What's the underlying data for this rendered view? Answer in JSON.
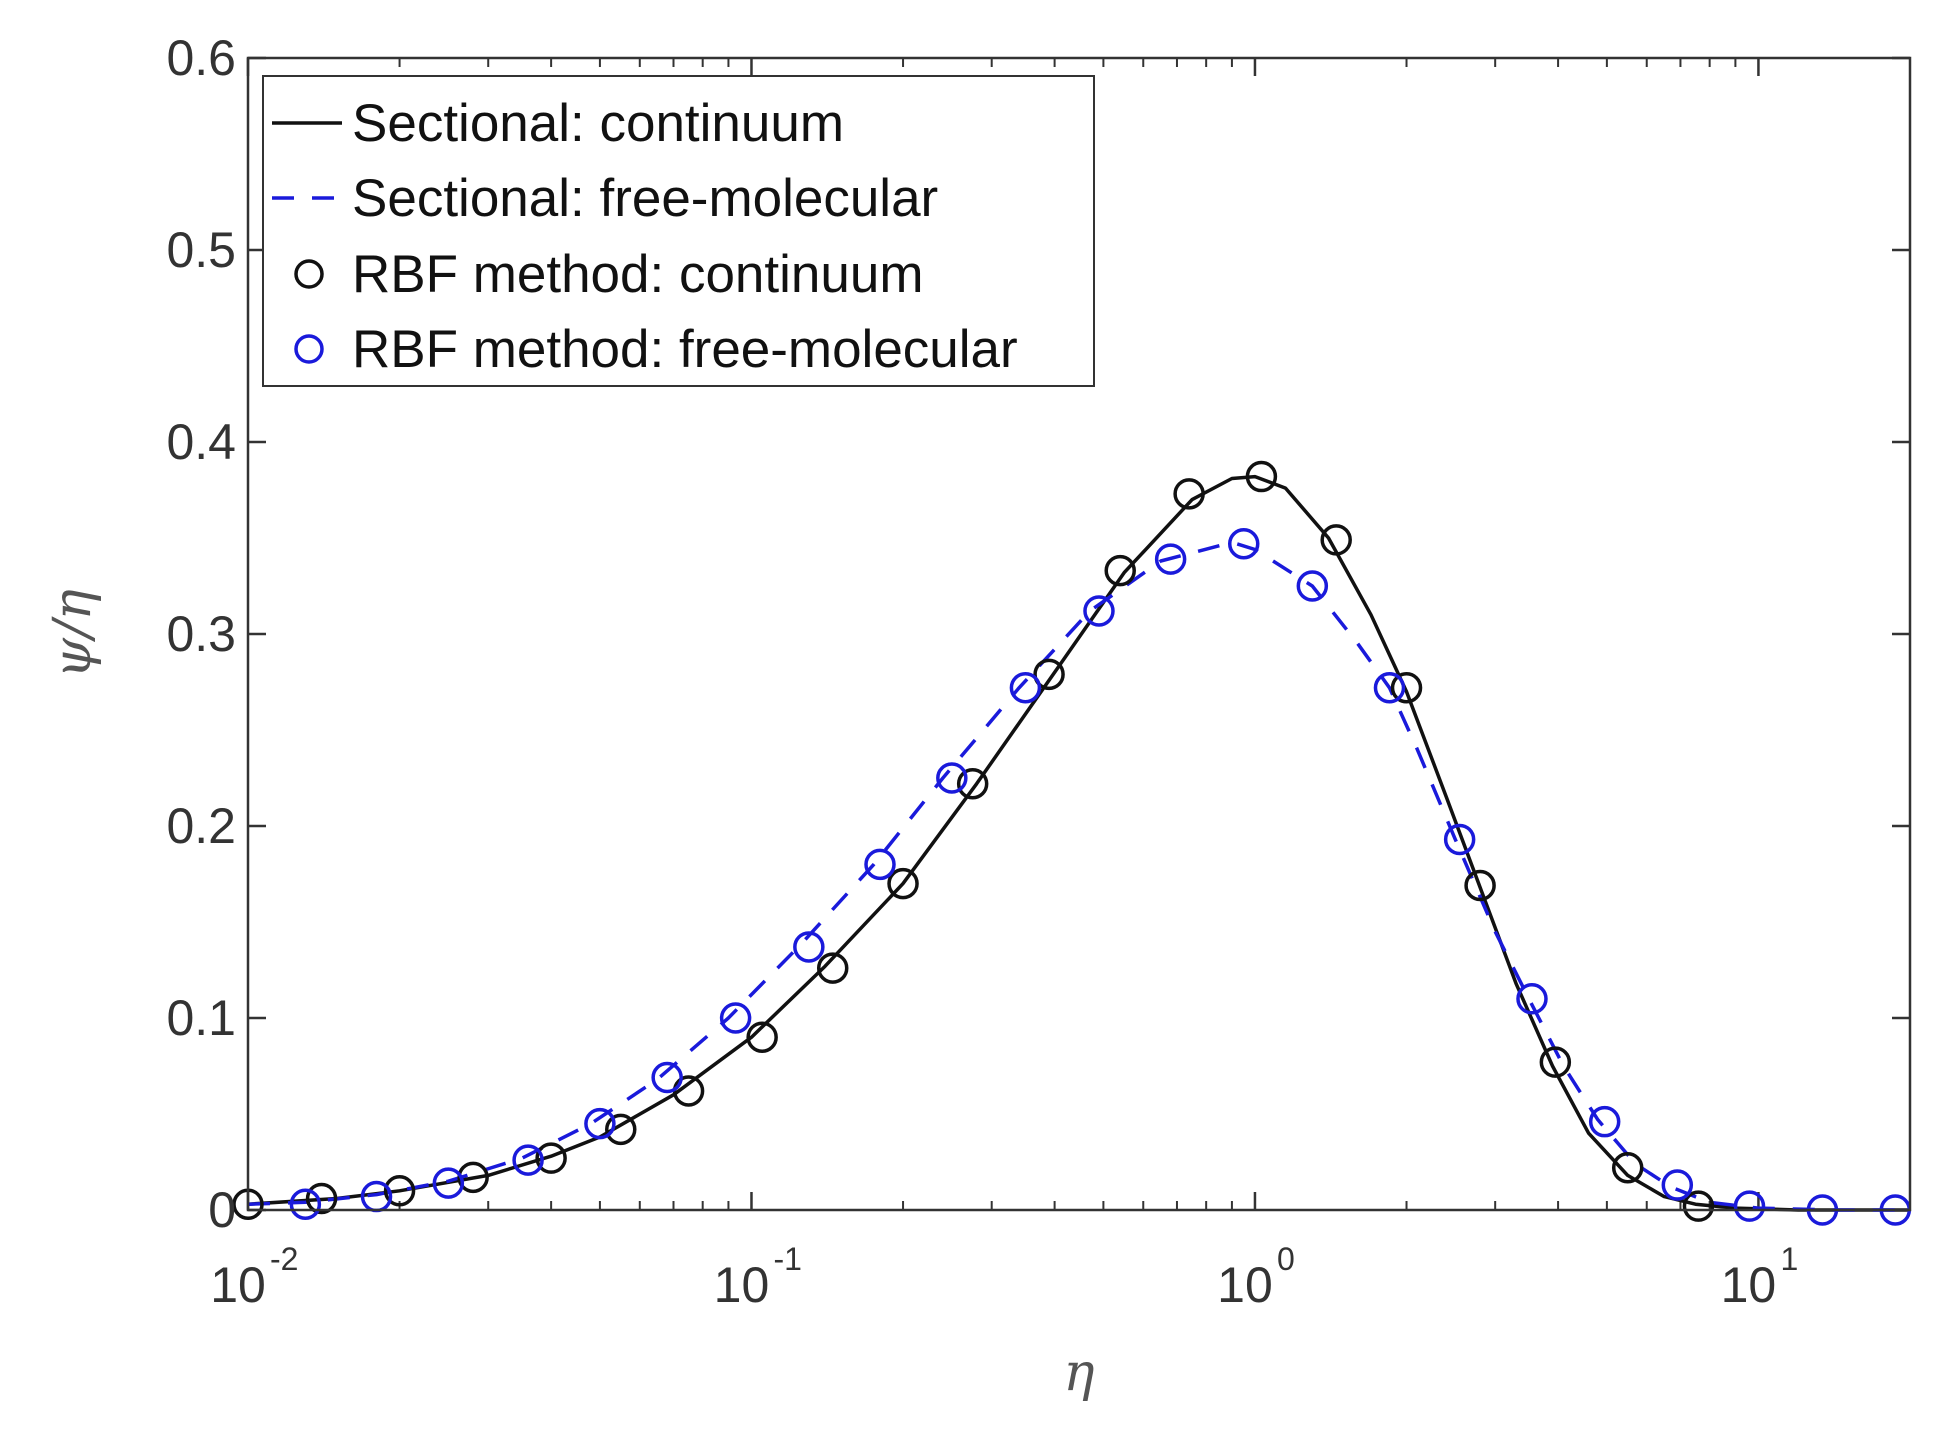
{
  "chart_data": {
    "type": "line",
    "title": "",
    "xlabel": "η",
    "ylabel": "ψ/η",
    "xscale": "log",
    "xlim": [
      0.01,
      20
    ],
    "ylim": [
      0,
      0.6
    ],
    "x_ticks": [
      {
        "value": 0.01,
        "base": "10",
        "exp": "-2"
      },
      {
        "value": 0.1,
        "base": "10",
        "exp": "-1"
      },
      {
        "value": 1,
        "base": "10",
        "exp": "0"
      },
      {
        "value": 10,
        "base": "10",
        "exp": "1"
      }
    ],
    "y_ticks": [
      {
        "value": 0,
        "label": "0"
      },
      {
        "value": 0.1,
        "label": "0.1"
      },
      {
        "value": 0.2,
        "label": "0.2"
      },
      {
        "value": 0.3,
        "label": "0.3"
      },
      {
        "value": 0.4,
        "label": "0.4"
      },
      {
        "value": 0.5,
        "label": "0.5"
      },
      {
        "value": 0.6,
        "label": "0.6"
      }
    ],
    "legend_position": "top-left",
    "series": [
      {
        "name": "Sectional: continuum",
        "kind": "line",
        "style": "solid",
        "color": "#111111",
        "x": [
          0.01,
          0.015,
          0.02,
          0.03,
          0.04,
          0.05,
          0.07,
          0.1,
          0.14,
          0.2,
          0.28,
          0.4,
          0.55,
          0.75,
          0.9,
          1.0,
          1.15,
          1.4,
          1.7,
          2.0,
          2.4,
          2.8,
          3.3,
          3.9,
          4.6,
          5.5,
          6.5,
          7.5,
          9,
          12,
          20
        ],
        "y": [
          0.003,
          0.006,
          0.01,
          0.018,
          0.028,
          0.038,
          0.06,
          0.09,
          0.127,
          0.17,
          0.222,
          0.28,
          0.332,
          0.37,
          0.381,
          0.382,
          0.376,
          0.35,
          0.31,
          0.27,
          0.215,
          0.168,
          0.118,
          0.075,
          0.04,
          0.018,
          0.007,
          0.003,
          0.001,
          0.0,
          0.0
        ]
      },
      {
        "name": "Sectional: free-molecular",
        "kind": "line",
        "style": "dashed",
        "color": "#1a1adb",
        "x": [
          0.01,
          0.013,
          0.018,
          0.025,
          0.035,
          0.048,
          0.065,
          0.09,
          0.125,
          0.175,
          0.24,
          0.34,
          0.47,
          0.65,
          0.85,
          0.92,
          1.0,
          1.3,
          1.6,
          1.85,
          2.1,
          2.5,
          3.0,
          3.5,
          4.1,
          4.8,
          5.7,
          6.7,
          8,
          10,
          14,
          20
        ],
        "y": [
          0.003,
          0.004,
          0.008,
          0.015,
          0.027,
          0.045,
          0.068,
          0.1,
          0.138,
          0.18,
          0.225,
          0.272,
          0.312,
          0.338,
          0.346,
          0.347,
          0.344,
          0.325,
          0.295,
          0.272,
          0.24,
          0.193,
          0.145,
          0.11,
          0.075,
          0.047,
          0.024,
          0.012,
          0.004,
          0.001,
          0.0,
          0.0
        ]
      },
      {
        "name": "RBF method: continuum",
        "kind": "markers",
        "marker": "circle",
        "color": "#111111",
        "x": [
          0.01,
          0.014,
          0.02,
          0.028,
          0.04,
          0.055,
          0.075,
          0.105,
          0.145,
          0.2,
          0.275,
          0.39,
          0.54,
          0.74,
          1.03,
          1.45,
          2.0,
          2.8,
          3.95,
          5.5,
          7.6
        ],
        "y": [
          0.003,
          0.006,
          0.01,
          0.017,
          0.027,
          0.042,
          0.062,
          0.09,
          0.126,
          0.17,
          0.222,
          0.279,
          0.333,
          0.373,
          0.382,
          0.349,
          0.272,
          0.169,
          0.077,
          0.022,
          0.002
        ]
      },
      {
        "name": "RBF method: free-molecular",
        "kind": "markers",
        "marker": "circle",
        "color": "#1a1adb",
        "x": [
          0.013,
          0.018,
          0.025,
          0.036,
          0.05,
          0.068,
          0.093,
          0.13,
          0.18,
          0.25,
          0.35,
          0.49,
          0.68,
          0.95,
          1.3,
          1.85,
          2.55,
          3.55,
          4.95,
          6.9,
          9.6,
          13.4,
          18.7
        ],
        "y": [
          0.003,
          0.007,
          0.014,
          0.026,
          0.045,
          0.069,
          0.1,
          0.137,
          0.18,
          0.225,
          0.272,
          0.312,
          0.339,
          0.347,
          0.325,
          0.272,
          0.193,
          0.11,
          0.046,
          0.013,
          0.002,
          0.0,
          0.0
        ]
      }
    ]
  }
}
